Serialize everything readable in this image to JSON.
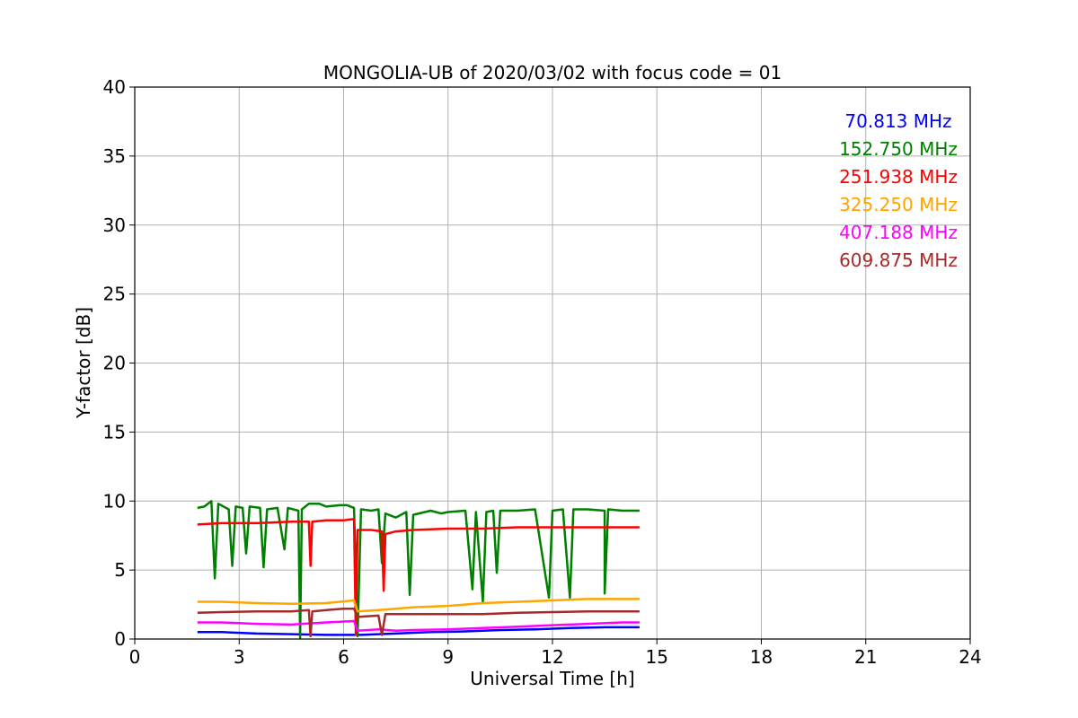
{
  "chart_data": {
    "type": "line",
    "title": "MONGOLIA-UB of 2020/03/02 with focus code = 01",
    "xlabel": "Universal Time [h]",
    "ylabel": "Y-factor [dB]",
    "xlim": [
      0,
      24
    ],
    "ylim": [
      0,
      40
    ],
    "xticks": [
      0,
      3,
      6,
      9,
      12,
      15,
      18,
      21,
      24
    ],
    "yticks": [
      0,
      5,
      10,
      15,
      20,
      25,
      30,
      35,
      40
    ],
    "grid": true,
    "legend_position": "top-right",
    "series": [
      {
        "name": "70.813 MHz",
        "color": "#0000ff",
        "points": [
          [
            1.8,
            0.5
          ],
          [
            2.5,
            0.5
          ],
          [
            3.5,
            0.4
          ],
          [
            4.5,
            0.35
          ],
          [
            5.5,
            0.3
          ],
          [
            6.3,
            0.3
          ],
          [
            6.5,
            0.3
          ],
          [
            7.5,
            0.4
          ],
          [
            8.5,
            0.5
          ],
          [
            9.5,
            0.55
          ],
          [
            10.5,
            0.65
          ],
          [
            11.5,
            0.7
          ],
          [
            12.5,
            0.8
          ],
          [
            13.5,
            0.85
          ],
          [
            14.5,
            0.85
          ]
        ]
      },
      {
        "name": "152.750 MHz",
        "color": "#008000",
        "points": [
          [
            1.8,
            9.5
          ],
          [
            2.0,
            9.6
          ],
          [
            2.2,
            10.0
          ],
          [
            2.3,
            4.4
          ],
          [
            2.4,
            9.8
          ],
          [
            2.7,
            9.4
          ],
          [
            2.8,
            5.3
          ],
          [
            2.9,
            9.6
          ],
          [
            3.1,
            9.5
          ],
          [
            3.2,
            6.2
          ],
          [
            3.3,
            9.6
          ],
          [
            3.6,
            9.5
          ],
          [
            3.7,
            5.2
          ],
          [
            3.8,
            9.4
          ],
          [
            4.1,
            9.5
          ],
          [
            4.3,
            6.5
          ],
          [
            4.4,
            9.5
          ],
          [
            4.7,
            9.3
          ],
          [
            4.75,
            0.1
          ],
          [
            4.8,
            9.4
          ],
          [
            5.0,
            9.8
          ],
          [
            5.3,
            9.8
          ],
          [
            5.5,
            9.6
          ],
          [
            5.9,
            9.7
          ],
          [
            6.1,
            9.7
          ],
          [
            6.3,
            9.5
          ],
          [
            6.4,
            0.2
          ],
          [
            6.5,
            9.4
          ],
          [
            6.8,
            9.3
          ],
          [
            7.0,
            9.4
          ],
          [
            7.1,
            5.5
          ],
          [
            7.2,
            9.1
          ],
          [
            7.5,
            8.8
          ],
          [
            7.8,
            9.2
          ],
          [
            7.9,
            3.2
          ],
          [
            8.0,
            9.0
          ],
          [
            8.5,
            9.3
          ],
          [
            8.8,
            9.1
          ],
          [
            9.0,
            9.2
          ],
          [
            9.5,
            9.3
          ],
          [
            9.7,
            3.6
          ],
          [
            9.8,
            9.2
          ],
          [
            10.0,
            2.7
          ],
          [
            10.1,
            9.2
          ],
          [
            10.3,
            9.3
          ],
          [
            10.4,
            4.8
          ],
          [
            10.5,
            9.3
          ],
          [
            11.0,
            9.3
          ],
          [
            11.5,
            9.4
          ],
          [
            11.9,
            3.0
          ],
          [
            12.0,
            9.3
          ],
          [
            12.3,
            9.4
          ],
          [
            12.5,
            3.0
          ],
          [
            12.6,
            9.4
          ],
          [
            13.0,
            9.4
          ],
          [
            13.5,
            9.3
          ],
          [
            13.5,
            3.3
          ],
          [
            13.6,
            9.4
          ],
          [
            14.0,
            9.3
          ],
          [
            14.5,
            9.3
          ]
        ]
      },
      {
        "name": "251.938 MHz",
        "color": "#ff0000",
        "points": [
          [
            1.8,
            8.3
          ],
          [
            2.5,
            8.4
          ],
          [
            3.5,
            8.4
          ],
          [
            4.5,
            8.5
          ],
          [
            5.0,
            8.5
          ],
          [
            5.05,
            5.3
          ],
          [
            5.1,
            8.5
          ],
          [
            5.5,
            8.6
          ],
          [
            6.0,
            8.6
          ],
          [
            6.3,
            8.7
          ],
          [
            6.35,
            0.3
          ],
          [
            6.4,
            7.9
          ],
          [
            6.8,
            7.9
          ],
          [
            7.1,
            7.8
          ],
          [
            7.15,
            3.5
          ],
          [
            7.2,
            7.6
          ],
          [
            7.5,
            7.8
          ],
          [
            8.0,
            7.9
          ],
          [
            9.0,
            8.0
          ],
          [
            10.0,
            8.0
          ],
          [
            11.0,
            8.1
          ],
          [
            12.0,
            8.1
          ],
          [
            13.0,
            8.1
          ],
          [
            14.0,
            8.1
          ],
          [
            14.5,
            8.1
          ]
        ]
      },
      {
        "name": "325.250 MHz",
        "color": "#ffa500",
        "points": [
          [
            1.8,
            2.7
          ],
          [
            2.5,
            2.7
          ],
          [
            3.5,
            2.6
          ],
          [
            4.5,
            2.55
          ],
          [
            5.5,
            2.6
          ],
          [
            6.3,
            2.8
          ],
          [
            6.4,
            2.0
          ],
          [
            7.0,
            2.1
          ],
          [
            7.5,
            2.2
          ],
          [
            8.0,
            2.3
          ],
          [
            9.0,
            2.4
          ],
          [
            10.0,
            2.6
          ],
          [
            11.0,
            2.7
          ],
          [
            12.0,
            2.8
          ],
          [
            13.0,
            2.9
          ],
          [
            14.0,
            2.9
          ],
          [
            14.5,
            2.9
          ]
        ]
      },
      {
        "name": "407.188 MHz",
        "color": "#ff00ff",
        "points": [
          [
            1.8,
            1.2
          ],
          [
            2.5,
            1.2
          ],
          [
            3.5,
            1.1
          ],
          [
            4.5,
            1.05
          ],
          [
            5.5,
            1.2
          ],
          [
            6.3,
            1.3
          ],
          [
            6.4,
            0.6
          ],
          [
            7.0,
            0.7
          ],
          [
            7.5,
            0.6
          ],
          [
            8.0,
            0.65
          ],
          [
            9.0,
            0.7
          ],
          [
            10.0,
            0.8
          ],
          [
            11.0,
            0.9
          ],
          [
            12.0,
            1.0
          ],
          [
            13.0,
            1.1
          ],
          [
            14.0,
            1.2
          ],
          [
            14.5,
            1.2
          ]
        ]
      },
      {
        "name": "609.875 MHz",
        "color": "#a52a2a",
        "points": [
          [
            1.8,
            1.9
          ],
          [
            2.5,
            1.95
          ],
          [
            3.5,
            2.0
          ],
          [
            4.5,
            2.0
          ],
          [
            5.0,
            2.1
          ],
          [
            5.05,
            0.2
          ],
          [
            5.1,
            2.0
          ],
          [
            5.5,
            2.1
          ],
          [
            6.0,
            2.2
          ],
          [
            6.3,
            2.2
          ],
          [
            6.4,
            1.6
          ],
          [
            7.0,
            1.7
          ],
          [
            7.1,
            0.3
          ],
          [
            7.2,
            1.8
          ],
          [
            8.0,
            1.8
          ],
          [
            9.0,
            1.8
          ],
          [
            10.0,
            1.8
          ],
          [
            11.0,
            1.9
          ],
          [
            12.0,
            1.95
          ],
          [
            13.0,
            2.0
          ],
          [
            14.0,
            2.0
          ],
          [
            14.5,
            2.0
          ]
        ]
      }
    ]
  }
}
